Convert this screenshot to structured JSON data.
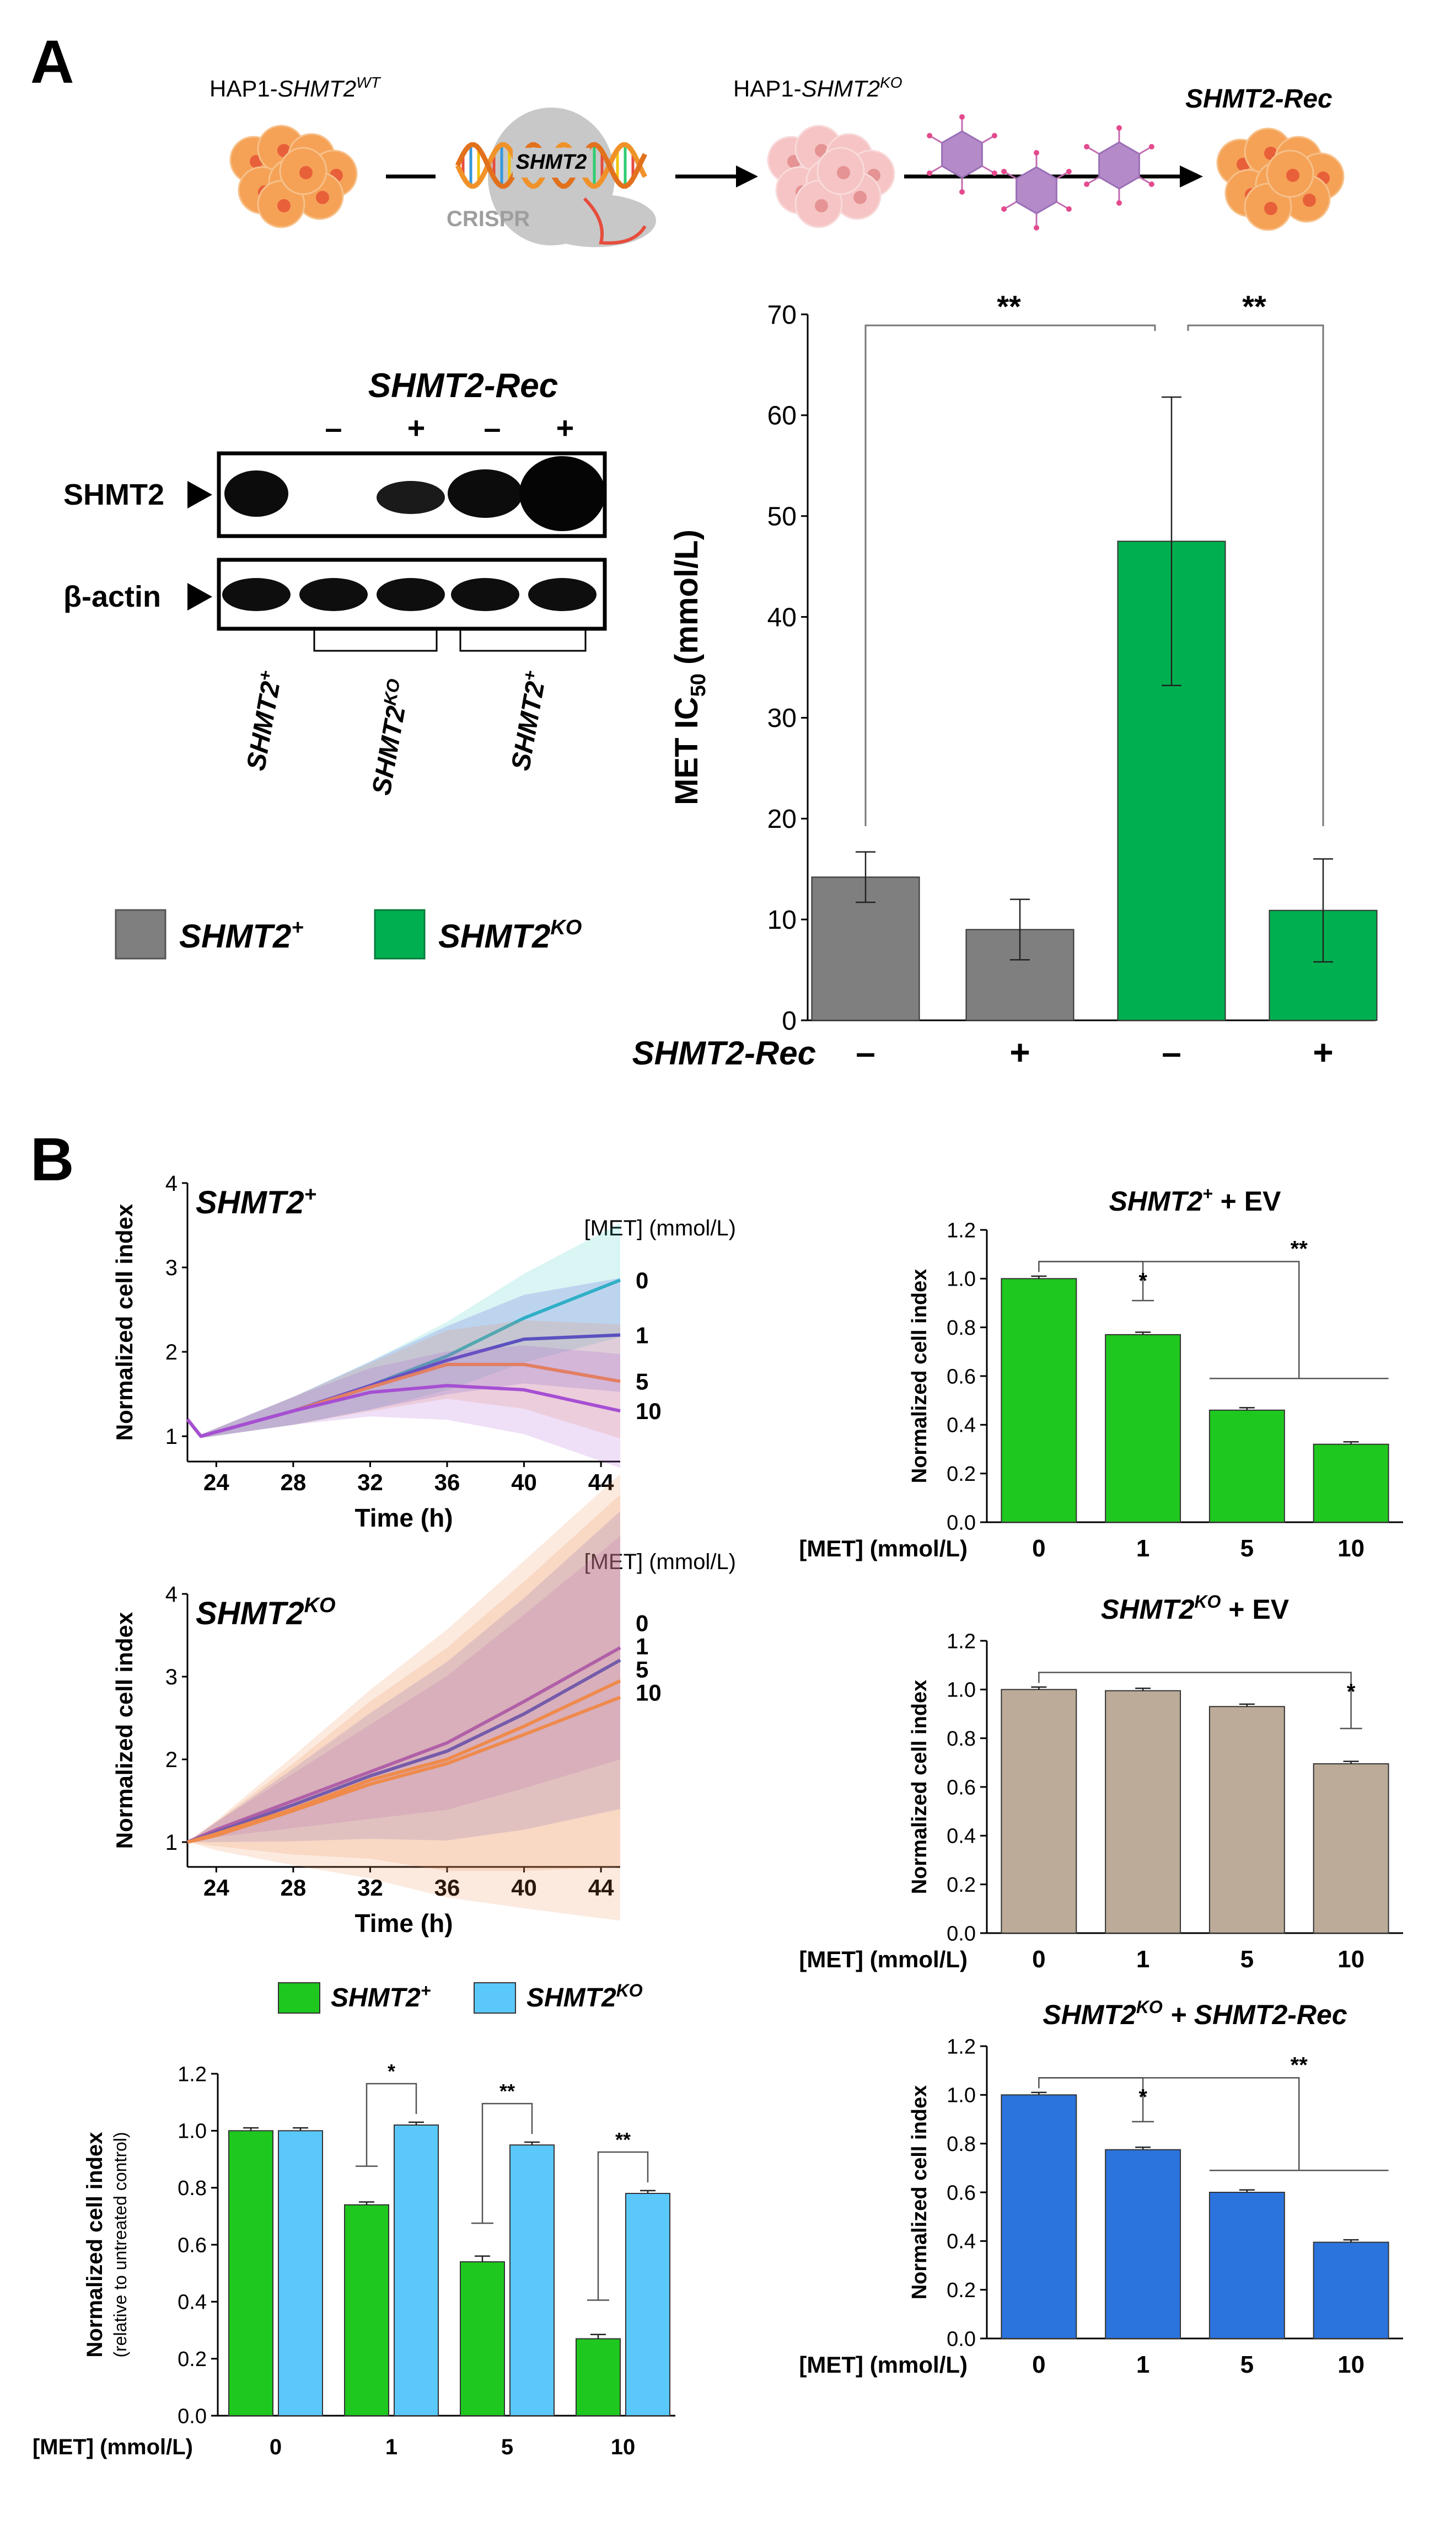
{
  "panels": {
    "a": "A",
    "b": "B"
  },
  "schematic": {
    "wt_prefix": "HAP1-",
    "wt_gene": "SHMT2",
    "wt_sup": "WT",
    "ko_prefix": "HAP1-",
    "ko_gene": "SHMT2",
    "ko_sup": "KO",
    "rec_label": "SHMT2-Rec",
    "crispr_gene": "SHMT2",
    "crispr_label": "CRISPR"
  },
  "western": {
    "title": "SHMT2-Rec",
    "signs": [
      "–",
      "+",
      "–",
      "+"
    ],
    "rows": [
      "SHMT2",
      "β-actin"
    ],
    "lane_labels": [
      {
        "gene": "SHMT2",
        "sup": "+"
      },
      {
        "gene": "SHMT2",
        "sup": "KO"
      },
      {
        "gene": "SHMT2",
        "sup": "+"
      }
    ]
  },
  "legend_a": [
    {
      "gene": "SHMT2",
      "sup": "+",
      "color": "#7f7f7f"
    },
    {
      "gene": "SHMT2",
      "sup": "KO",
      "color": "#00b050"
    }
  ],
  "colors": {
    "gray": "#7f7f7f",
    "green_a": "#00b050",
    "green_b": "#1ec81e",
    "tan": "#bcab99",
    "blue_dark": "#2c74dd",
    "blue_light": "#5bc8fb",
    "c0": "#2ec7c2",
    "c1": "#3b45d8",
    "c5": "#ef8a4b",
    "c10": "#a64fd3"
  },
  "chart_data": [
    {
      "id": "ic50",
      "type": "bar",
      "title": "",
      "ylabel_main": "MET IC",
      "ylabel_sub": "50",
      "ylabel_unit": " (mmol/L)",
      "ylim": [
        0,
        70
      ],
      "yticks": [
        0,
        10,
        20,
        30,
        40,
        50,
        60,
        70
      ],
      "categories": [
        "–",
        "+",
        "–",
        "+"
      ],
      "xlabel": "SHMT2-Rec",
      "values": [
        14.2,
        9.0,
        47.5,
        10.9
      ],
      "errors": [
        2.5,
        3.0,
        14.3,
        5.1
      ],
      "bar_colors": [
        "gray",
        "gray",
        "green_a",
        "green_a"
      ],
      "significance": [
        {
          "label": "**",
          "from": 0,
          "to": 2,
          "y": 70
        },
        {
          "label": "**",
          "from": 2,
          "to": 3,
          "y": 70
        }
      ]
    },
    {
      "id": "ts_plus",
      "type": "line",
      "title": "SHMT2",
      "title_sup": "+",
      "ylabel": "Normalized cell index",
      "xlabel": "Time (h)",
      "xlim": [
        22.5,
        45
      ],
      "ylim": [
        0.7,
        4
      ],
      "xticks": [
        24,
        28,
        32,
        36,
        40,
        44
      ],
      "yticks": [
        1,
        2,
        3,
        4
      ],
      "legend_title": "[MET] (mmol/L)",
      "series": [
        {
          "name": "0",
          "color": "c0",
          "x": [
            22.5,
            23.2,
            24,
            28,
            32,
            36,
            40,
            45
          ],
          "y": [
            1.2,
            1.0,
            1.05,
            1.3,
            1.6,
            1.95,
            2.4,
            2.85
          ]
        },
        {
          "name": "1",
          "color": "c1",
          "x": [
            22.5,
            23.2,
            24,
            28,
            32,
            36,
            40,
            45
          ],
          "y": [
            1.2,
            1.0,
            1.05,
            1.3,
            1.6,
            1.9,
            2.15,
            2.2
          ]
        },
        {
          "name": "5",
          "color": "c5",
          "x": [
            22.5,
            23.2,
            24,
            28,
            32,
            36,
            40,
            45
          ],
          "y": [
            1.2,
            1.0,
            1.05,
            1.3,
            1.58,
            1.85,
            1.85,
            1.65
          ]
        },
        {
          "name": "10",
          "color": "c10",
          "x": [
            22.5,
            23.2,
            24,
            28,
            32,
            36,
            40,
            45
          ],
          "y": [
            1.2,
            1.0,
            1.05,
            1.3,
            1.52,
            1.6,
            1.55,
            1.3
          ]
        }
      ]
    },
    {
      "id": "ts_ko",
      "type": "line",
      "title": "SHMT2",
      "title_sup": "KO",
      "ylabel": "Normalized cell index",
      "xlabel": "Time (h)",
      "xlim": [
        22.5,
        45
      ],
      "ylim": [
        0.7,
        4
      ],
      "xticks": [
        24,
        28,
        32,
        36,
        40,
        44
      ],
      "yticks": [
        1,
        2,
        3,
        4
      ],
      "legend_title": "[MET] (mmol/L)",
      "series": [
        {
          "name": "0",
          "color": "c10",
          "x": [
            22.5,
            24,
            28,
            32,
            36,
            40,
            45
          ],
          "y": [
            1.0,
            1.15,
            1.5,
            1.85,
            2.2,
            2.7,
            3.35
          ]
        },
        {
          "name": "1",
          "color": "c1",
          "x": [
            22.5,
            24,
            28,
            32,
            36,
            40,
            45
          ],
          "y": [
            1.0,
            1.12,
            1.45,
            1.8,
            2.1,
            2.55,
            3.2
          ]
        },
        {
          "name": "5",
          "color": "c5",
          "x": [
            22.5,
            24,
            28,
            32,
            36,
            40,
            45
          ],
          "y": [
            1.0,
            1.1,
            1.4,
            1.75,
            2.0,
            2.4,
            2.95
          ]
        },
        {
          "name": "10",
          "color": "c5",
          "x": [
            22.5,
            24,
            28,
            32,
            36,
            40,
            45
          ],
          "y": [
            1.0,
            1.08,
            1.38,
            1.7,
            1.95,
            2.3,
            2.75
          ]
        }
      ]
    },
    {
      "id": "grouped",
      "type": "bar",
      "ylabel": "Normalized cell index",
      "ylabel_sub": "(relative to untreated control)",
      "xlabel": "[MET] (mmol/L)",
      "categories": [
        "0",
        "1",
        "5",
        "10"
      ],
      "ylim": [
        0,
        1.2
      ],
      "yticks": [
        "0.0",
        "0.2",
        "0.4",
        "0.6",
        "0.8",
        "1.0",
        "1.2"
      ],
      "series": [
        {
          "name": "SHMT2",
          "sup": "+",
          "color": "green_b",
          "values": [
            1.0,
            0.74,
            0.54,
            0.27
          ],
          "errors": [
            0.01,
            0.01,
            0.02,
            0.015
          ]
        },
        {
          "name": "SHMT2",
          "sup": "KO",
          "color": "blue_light",
          "values": [
            1.0,
            1.02,
            0.95,
            0.78
          ],
          "errors": [
            0.01,
            0.01,
            0.01,
            0.01
          ]
        }
      ],
      "significance": [
        "",
        "*",
        "**",
        "**"
      ]
    },
    {
      "id": "ev_plus",
      "type": "bar",
      "title_gene": "SHMT2",
      "title_sup": "+",
      "title_rest": " + EV",
      "ylabel": "Normalized cell index",
      "xlabel": "[MET] (mmol/L)",
      "categories": [
        "0",
        "1",
        "5",
        "10"
      ],
      "values": [
        1.0,
        0.77,
        0.46,
        0.32
      ],
      "errors": [
        0.01,
        0.01,
        0.01,
        0.01
      ],
      "ylim": [
        0,
        1.2
      ],
      "yticks": [
        "0.0",
        "0.2",
        "0.4",
        "0.6",
        "0.8",
        "1.0",
        "1.2"
      ],
      "color": "green_b",
      "sig": [
        {
          "label": "*",
          "type": "single",
          "to": 1,
          "y": 1.07,
          "drop": 0.91
        },
        {
          "label": "**",
          "type": "double",
          "to": [
            2,
            3
          ],
          "y": 1.07,
          "drop": 0.59
        }
      ]
    },
    {
      "id": "ev_ko",
      "type": "bar",
      "title_gene": "SHMT2",
      "title_sup": "KO",
      "title_rest": " + EV",
      "ylabel": "Normalized cell index",
      "xlabel": "[MET] (mmol/L)",
      "categories": [
        "0",
        "1",
        "5",
        "10"
      ],
      "values": [
        1.0,
        0.995,
        0.93,
        0.695
      ],
      "errors": [
        0.01,
        0.01,
        0.01,
        0.01
      ],
      "ylim": [
        0,
        1.2
      ],
      "yticks": [
        "0.0",
        "0.2",
        "0.4",
        "0.6",
        "0.8",
        "1.0",
        "1.2"
      ],
      "color": "tan",
      "sig": [
        {
          "label": "*",
          "type": "single",
          "to": 3,
          "y": 1.07,
          "drop": 0.84
        }
      ]
    },
    {
      "id": "ko_rec",
      "type": "bar",
      "title_gene": "SHMT2",
      "title_sup": "KO",
      "title_rest": " + SHMT2-Rec",
      "ylabel": "Normalized cell index",
      "xlabel": "[MET] (mmol/L)",
      "categories": [
        "0",
        "1",
        "5",
        "10"
      ],
      "values": [
        1.0,
        0.775,
        0.6,
        0.395
      ],
      "errors": [
        0.01,
        0.01,
        0.01,
        0.01
      ],
      "ylim": [
        0,
        1.2
      ],
      "yticks": [
        "0.0",
        "0.2",
        "0.4",
        "0.6",
        "0.8",
        "1.0",
        "1.2"
      ],
      "color": "blue_dark",
      "sig": [
        {
          "label": "*",
          "type": "single",
          "to": 1,
          "y": 1.07,
          "drop": 0.89
        },
        {
          "label": "**",
          "type": "double",
          "to": [
            2,
            3
          ],
          "y": 1.07,
          "drop": 0.69
        }
      ]
    }
  ]
}
